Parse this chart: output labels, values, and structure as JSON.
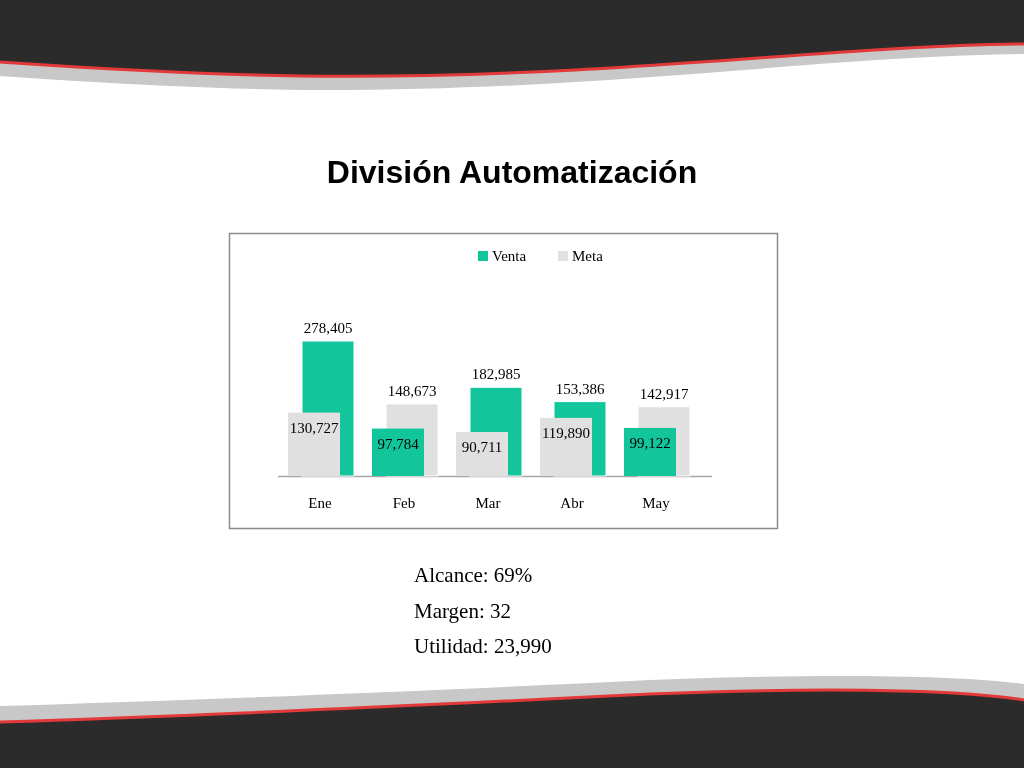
{
  "chart_data": {
    "type": "bar",
    "title": "División Automatización",
    "categories": [
      "Ene",
      "Feb",
      "Mar",
      "Abr",
      "May"
    ],
    "series": [
      {
        "name": "Venta",
        "color": "#13c59a",
        "values": [
          278405,
          97784,
          182985,
          153386,
          99122
        ],
        "value_labels": [
          "278,405",
          "97,784",
          "182,985",
          "153,386",
          "99,122"
        ]
      },
      {
        "name": "Meta",
        "color": "#e0e0e0",
        "values": [
          130727,
          148673,
          90711,
          119890,
          142917
        ],
        "value_labels": [
          "130,727",
          "148,673",
          "90,711",
          "119,890",
          "142,917"
        ]
      }
    ],
    "legend": "top",
    "annotations": [
      "Alcance: 69%",
      "Margen: 32",
      "Utilidad: 23,990"
    ]
  }
}
